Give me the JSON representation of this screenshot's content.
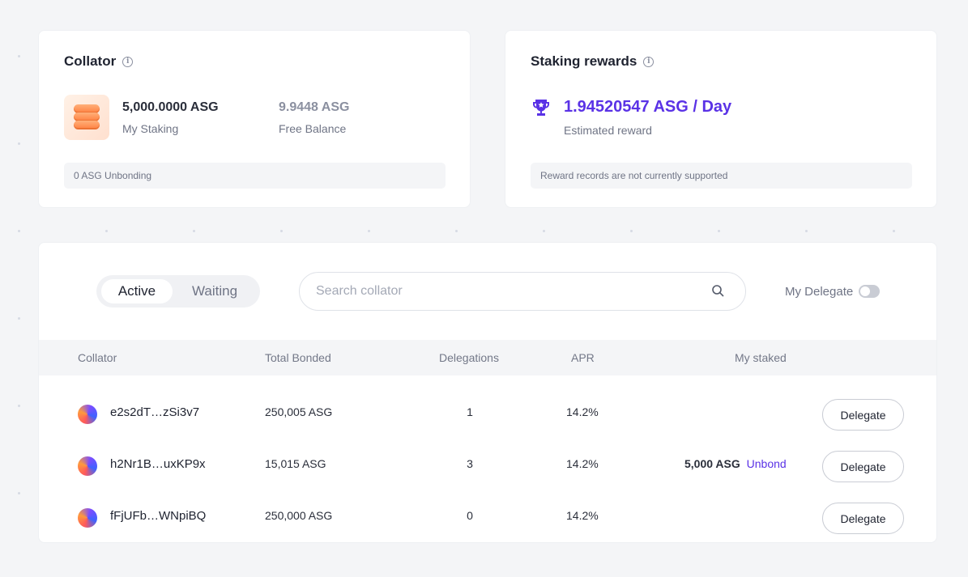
{
  "collator_card": {
    "title": "Collator",
    "my_staking_value": "5,000.0000 ASG",
    "my_staking_label": "My Staking",
    "free_balance_value": "9.9448 ASG",
    "free_balance_label": "Free Balance",
    "unbonding_text": "0 ASG Unbonding"
  },
  "rewards_card": {
    "title": "Staking rewards",
    "reward_value": "1.94520547 ASG / Day",
    "reward_label": "Estimated reward",
    "notice_text": "Reward records are not currently supported"
  },
  "collator_list": {
    "tabs": [
      {
        "label": "Active",
        "selected": true
      },
      {
        "label": "Waiting",
        "selected": false
      }
    ],
    "search": {
      "placeholder": "Search collator",
      "value": ""
    },
    "my_delegate_toggle": {
      "label": "My Delegate",
      "on": false
    },
    "columns": [
      "Collator",
      "Total Bonded",
      "Delegations",
      "APR",
      "My staked"
    ],
    "rows": [
      {
        "collator": "e2s2dT…zSi3v7",
        "total_bonded": "250,005 ASG",
        "delegations": "1",
        "apr": "14.2%",
        "my_staked": "",
        "unbond_label": "",
        "action": "Delegate"
      },
      {
        "collator": "h2Nr1B…uxKP9x",
        "total_bonded": "15,015 ASG",
        "delegations": "3",
        "apr": "14.2%",
        "my_staked": "5,000 ASG",
        "unbond_label": "Unbond",
        "action": "Delegate"
      },
      {
        "collator": "fFjUFb…WNpiBQ",
        "total_bonded": "250,000 ASG",
        "delegations": "0",
        "apr": "14.2%",
        "my_staked": "",
        "unbond_label": "",
        "action": "Delegate"
      }
    ]
  },
  "colors": {
    "accent": "#5a32e6",
    "background": "#f4f5f7",
    "card": "#ffffff"
  }
}
